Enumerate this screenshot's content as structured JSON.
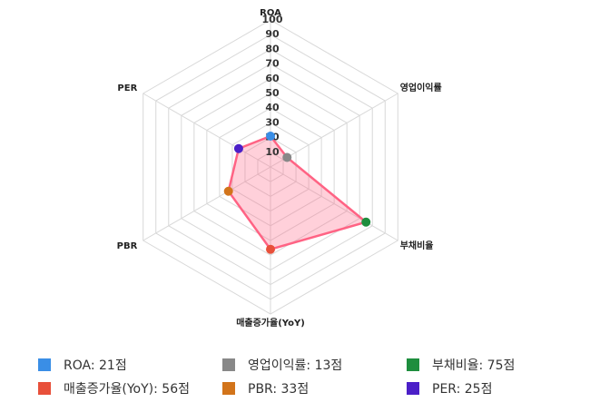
{
  "chart_data": {
    "type": "radar",
    "categories": [
      "ROA",
      "영업이익률",
      "부채비율",
      "매출증가율(YoY)",
      "PBR",
      "PER"
    ],
    "values": [
      21,
      13,
      75,
      56,
      33,
      25
    ],
    "value_labels": [
      "ROA: 21점",
      "영업이익률: 13점",
      "부채비율: 75점",
      "매출증가율(YoY): 56점",
      "PBR: 33점",
      "PER: 25점"
    ],
    "colors": [
      "#3a8ee6",
      "#888888",
      "#1e8e3e",
      "#e8503a",
      "#d2741a",
      "#4b1fc8"
    ],
    "line_color": "#ff6384",
    "fill_color": "rgba(255,99,132,0.3)",
    "rlim": [
      0,
      100
    ],
    "rticks": [
      10,
      20,
      30,
      40,
      50,
      60,
      70,
      80,
      90,
      100
    ]
  }
}
